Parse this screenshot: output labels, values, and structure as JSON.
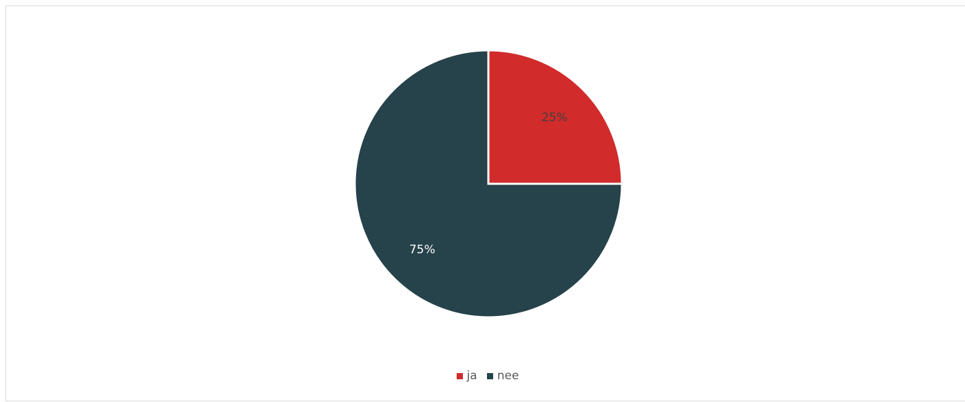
{
  "chart_data": {
    "type": "pie",
    "categories": [
      "ja",
      "nee"
    ],
    "values": [
      25,
      75
    ],
    "labels": [
      "25%",
      "75%"
    ],
    "colors": [
      "#d12b2b",
      "#26424a"
    ],
    "label_colors": [
      "#404040",
      "#ffffff"
    ],
    "start_angle_deg": 0,
    "direction": "clockwise",
    "legend_position": "bottom"
  }
}
